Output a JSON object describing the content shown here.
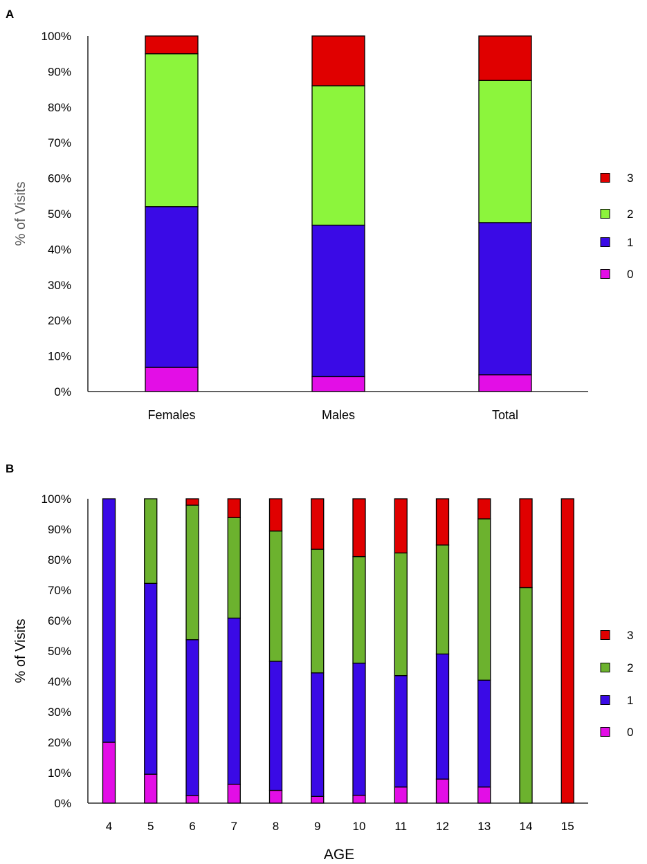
{
  "chart_data": [
    {
      "panel_label": "A",
      "type": "bar",
      "stacked": true,
      "categories": [
        "Females",
        "Males",
        "Total"
      ],
      "xlabel": "",
      "ylabel": "% of Visits",
      "ylim": [
        0,
        100
      ],
      "yticks": [
        "0%",
        "10%",
        "20%",
        "30%",
        "40%",
        "50%",
        "60%",
        "70%",
        "80%",
        "90%",
        "100%"
      ],
      "legend_position": "right",
      "series": [
        {
          "name": "0",
          "color": "#e30ee6",
          "values": [
            6.8,
            4.2,
            4.7
          ]
        },
        {
          "name": "1",
          "color": "#3a0ae6",
          "values": [
            45.2,
            42.6,
            42.8
          ]
        },
        {
          "name": "2",
          "color": "#8cf53c",
          "values": [
            43.0,
            39.2,
            40.0
          ]
        },
        {
          "name": "3",
          "color": "#e00000",
          "values": [
            5.0,
            14.0,
            12.5
          ]
        }
      ]
    },
    {
      "panel_label": "B",
      "type": "bar",
      "stacked": true,
      "categories": [
        "4",
        "5",
        "6",
        "7",
        "8",
        "9",
        "10",
        "11",
        "12",
        "13",
        "14",
        "15"
      ],
      "xlabel": "AGE",
      "ylabel": "% of Visits",
      "ylim": [
        0,
        100
      ],
      "yticks": [
        "0%",
        "10%",
        "20%",
        "30%",
        "40%",
        "50%",
        "60%",
        "70%",
        "80%",
        "90%",
        "100%"
      ],
      "legend_position": "right",
      "series": [
        {
          "name": "0",
          "color": "#e30ee6",
          "values": [
            20.0,
            9.5,
            2.5,
            6.2,
            4.2,
            2.2,
            2.6,
            5.3,
            7.9,
            5.3,
            0,
            0
          ]
        },
        {
          "name": "1",
          "color": "#3a0ae6",
          "values": [
            80.0,
            62.7,
            51.2,
            54.6,
            42.4,
            40.6,
            43.4,
            36.6,
            41.1,
            35.1,
            0,
            0
          ]
        },
        {
          "name": "2",
          "color": "#6cb22e",
          "values": [
            0,
            27.8,
            44.2,
            33.0,
            42.8,
            40.6,
            35.0,
            40.3,
            35.8,
            53.0,
            70.8,
            0
          ]
        },
        {
          "name": "3",
          "color": "#e00000",
          "values": [
            0,
            0,
            2.1,
            6.2,
            10.6,
            16.6,
            19.0,
            17.8,
            15.2,
            6.6,
            29.2,
            100.0
          ]
        }
      ]
    }
  ]
}
